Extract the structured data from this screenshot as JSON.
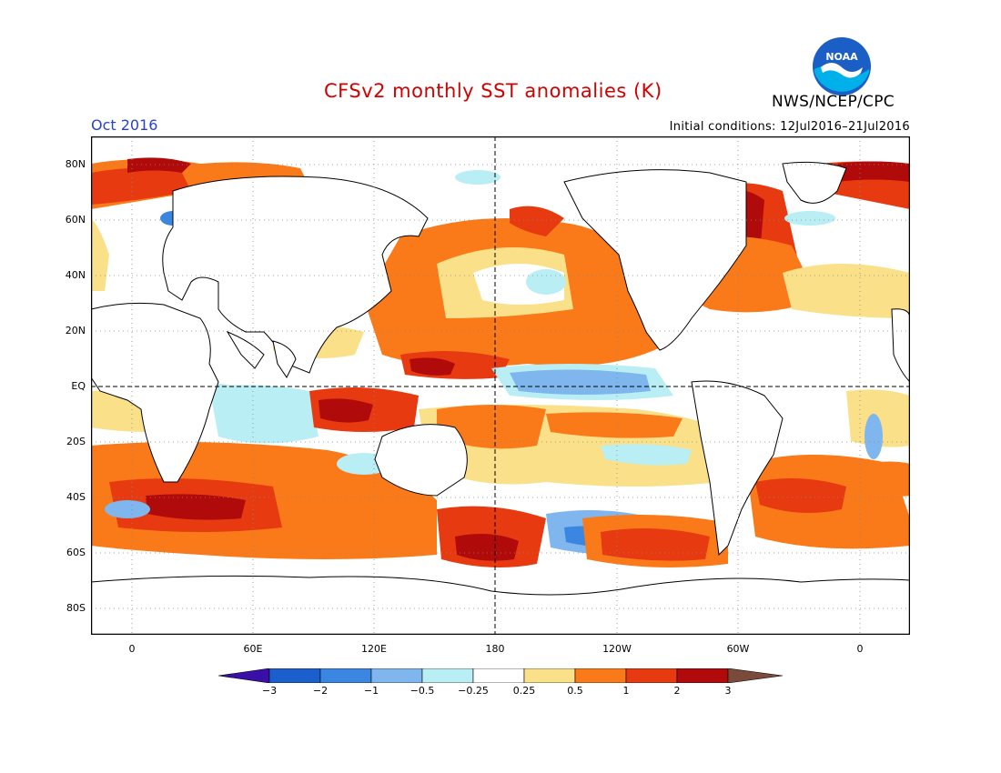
{
  "header": {
    "title": "CFSv2 monthly SST anomalies (K)",
    "month": "Oct 2016",
    "initial_conditions": "Initial conditions: 12Jul2016–21Jul2016",
    "agency": "NWS/NCEP/CPC",
    "logo_text": "NOAA"
  },
  "map": {
    "lat_labels": [
      "80N",
      "60N",
      "40N",
      "20N",
      "EQ",
      "20S",
      "40S",
      "60S",
      "80S"
    ],
    "lon_labels": [
      "0",
      "60E",
      "120E",
      "180",
      "120W",
      "60W",
      "0"
    ]
  },
  "colorbar": {
    "labels": [
      "−3",
      "−2",
      "−1",
      "−0.5",
      "−0.25",
      "0.25",
      "0.5",
      "1",
      "2",
      "3"
    ],
    "colors": {
      "lt_m3": "#3a0fa8",
      "m3_m2": "#1a5fcc",
      "m2_m1": "#3a86e0",
      "m1_m05": "#7fb6ee",
      "m05_m025": "#b8eef4",
      "neutral": "#ffffff",
      "p025_p05": "#fbe08a",
      "p05_p1": "#fa7a1a",
      "p1_p2": "#e83a10",
      "p2_p3": "#b00a0a",
      "gt_p3": "#7a4a3a"
    }
  }
}
